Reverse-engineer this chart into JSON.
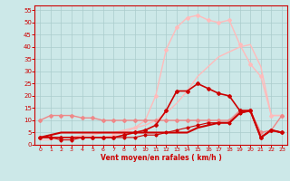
{
  "background_color": "#cce8e8",
  "grid_color": "#aacccc",
  "xlabel": "Vent moyen/en rafales ( km/h )",
  "xlabel_color": "#cc0000",
  "tick_color": "#cc0000",
  "xlim": [
    -0.5,
    23.5
  ],
  "ylim": [
    0,
    57
  ],
  "xticks": [
    0,
    1,
    2,
    3,
    4,
    5,
    6,
    7,
    8,
    9,
    10,
    11,
    12,
    13,
    14,
    15,
    16,
    17,
    18,
    19,
    20,
    21,
    22,
    23
  ],
  "yticks": [
    0,
    5,
    10,
    15,
    20,
    25,
    30,
    35,
    40,
    45,
    50,
    55
  ],
  "lines": [
    {
      "x": [
        0,
        1,
        2,
        3,
        4,
        5,
        6,
        7,
        8,
        9,
        10,
        11,
        12,
        13,
        14,
        15,
        16,
        17,
        18,
        19,
        20,
        21,
        22,
        23
      ],
      "y": [
        2,
        2,
        3,
        3,
        4,
        4,
        5,
        5,
        6,
        7,
        8,
        10,
        13,
        17,
        22,
        28,
        32,
        36,
        38,
        40,
        41,
        32,
        12,
        12
      ],
      "color": "#ffbbbb",
      "lw": 1.0,
      "marker": null,
      "ms": 0
    },
    {
      "x": [
        0,
        1,
        2,
        3,
        4,
        5,
        6,
        7,
        8,
        9,
        10,
        11,
        12,
        13,
        14,
        15,
        16,
        17,
        18,
        19,
        20,
        21,
        22,
        23
      ],
      "y": [
        3,
        3,
        3,
        3,
        3,
        3,
        3,
        4,
        5,
        7,
        10,
        20,
        39,
        48,
        52,
        53,
        51,
        50,
        51,
        41,
        33,
        28,
        12,
        12
      ],
      "color": "#ffbbbb",
      "lw": 1.0,
      "marker": "D",
      "ms": 2.0
    },
    {
      "x": [
        0,
        1,
        2,
        3,
        4,
        5,
        6,
        7,
        8,
        9,
        10,
        11,
        12,
        13,
        14,
        15,
        16,
        17,
        18,
        19,
        20,
        21,
        22,
        23
      ],
      "y": [
        10,
        12,
        12,
        12,
        11,
        11,
        10,
        10,
        10,
        10,
        10,
        10,
        10,
        10,
        10,
        10,
        10,
        10,
        10,
        14,
        14,
        5,
        6,
        12
      ],
      "color": "#ee8888",
      "lw": 1.0,
      "marker": "D",
      "ms": 2.0
    },
    {
      "x": [
        0,
        1,
        2,
        3,
        4,
        5,
        6,
        7,
        8,
        9,
        10,
        11,
        12,
        13,
        14,
        15,
        16,
        17,
        18,
        19,
        20,
        21,
        22,
        23
      ],
      "y": [
        3,
        3,
        3,
        3,
        3,
        3,
        3,
        3,
        4,
        5,
        6,
        8,
        14,
        22,
        22,
        25,
        23,
        21,
        20,
        14,
        14,
        3,
        6,
        5
      ],
      "color": "#cc0000",
      "lw": 1.2,
      "marker": "D",
      "ms": 2.0
    },
    {
      "x": [
        0,
        1,
        2,
        3,
        4,
        5,
        6,
        7,
        8,
        9,
        10,
        11,
        12,
        13,
        14,
        15,
        16,
        17,
        18,
        19,
        20,
        21,
        22,
        23
      ],
      "y": [
        3,
        3,
        2,
        2,
        3,
        3,
        3,
        3,
        3,
        3,
        4,
        4,
        5,
        6,
        7,
        8,
        9,
        9,
        9,
        13,
        14,
        3,
        6,
        5
      ],
      "color": "#cc0000",
      "lw": 0.8,
      "marker": "P",
      "ms": 2.0
    },
    {
      "x": [
        0,
        1,
        2,
        3,
        4,
        5,
        6,
        7,
        8,
        9,
        10,
        11,
        12,
        13,
        14,
        15,
        16,
        17,
        18,
        19,
        20,
        21,
        22,
        23
      ],
      "y": [
        3,
        4,
        5,
        5,
        5,
        5,
        5,
        5,
        5,
        5,
        5,
        5,
        5,
        5,
        5,
        7,
        8,
        9,
        9,
        13,
        14,
        3,
        6,
        5
      ],
      "color": "#cc0000",
      "lw": 1.5,
      "marker": null,
      "ms": 0
    }
  ]
}
